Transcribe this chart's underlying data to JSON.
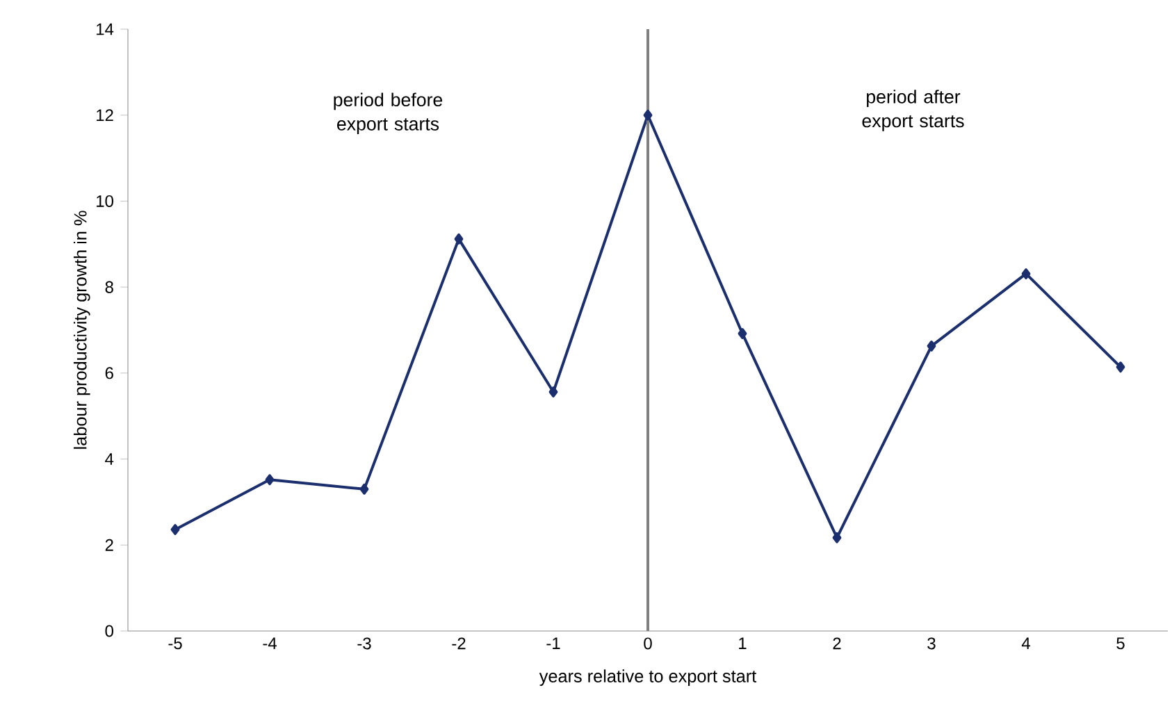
{
  "chart_data": {
    "type": "line",
    "xlabel": "years relative to export start",
    "ylabel": "labour productivity growth in %",
    "categories": [
      "-5",
      "-4",
      "-3",
      "-2",
      "-1",
      "0",
      "1",
      "2",
      "3",
      "4",
      "5"
    ],
    "series": [
      {
        "color": "#1b2f6e",
        "values": [
          2.36,
          3.52,
          3.3,
          9.12,
          5.56,
          12.0,
          6.92,
          2.17,
          6.63,
          8.31,
          6.14
        ]
      }
    ],
    "ylim": [
      0,
      14
    ],
    "yticks": [
      0,
      2,
      4,
      6,
      8,
      10,
      12,
      14
    ],
    "marker": "diamond",
    "line_style": "solid",
    "ref_lines": [
      {
        "axis": "x",
        "value": "0",
        "color": "#808080"
      }
    ],
    "annotations": [
      "period before export starts",
      "period after export starts"
    ]
  }
}
